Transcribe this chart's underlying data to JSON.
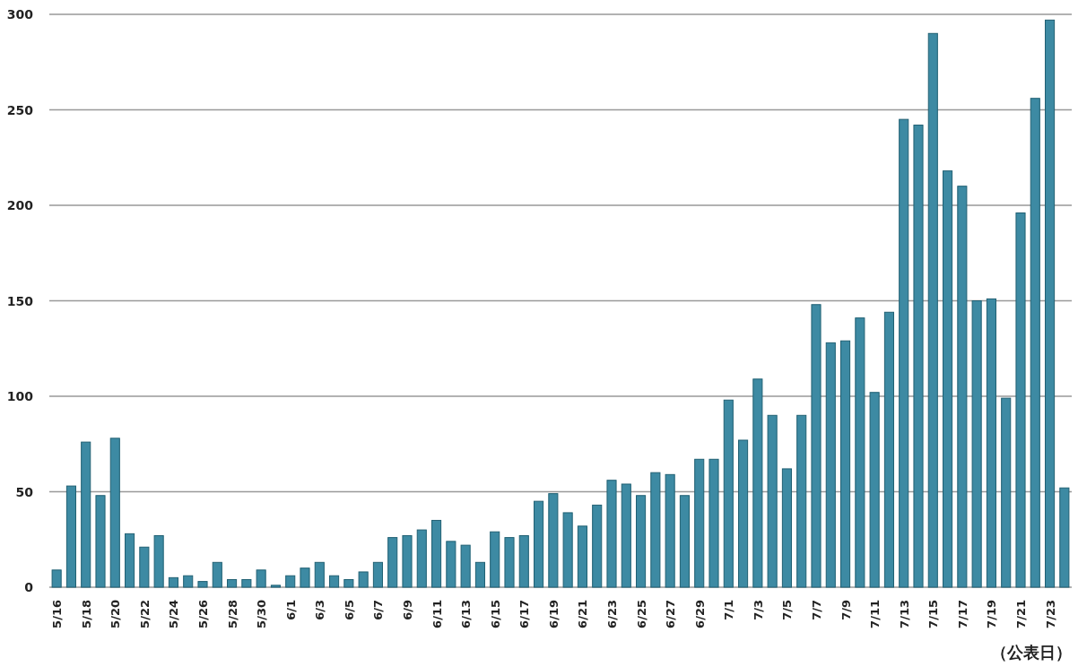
{
  "chart_data": {
    "type": "bar",
    "categories": [
      "5/16",
      null,
      "5/18",
      null,
      "5/20",
      null,
      "5/22",
      null,
      "5/24",
      null,
      "5/26",
      null,
      "5/28",
      null,
      "5/30",
      null,
      "6/1",
      null,
      "6/3",
      null,
      "6/5",
      null,
      "6/7",
      null,
      "6/9",
      null,
      "6/11",
      null,
      "6/13",
      null,
      "6/15",
      null,
      "6/17",
      null,
      "6/19",
      null,
      "6/21",
      null,
      "6/23",
      null,
      "6/25",
      null,
      "6/27",
      null,
      "6/29",
      null,
      "7/1",
      null,
      "7/3",
      null,
      "7/5",
      null,
      "7/7",
      null,
      "7/9",
      null,
      "7/11",
      null,
      "7/13",
      null,
      "7/15",
      null,
      "7/17",
      null,
      "7/19",
      null,
      "7/21",
      null,
      "7/23",
      null
    ],
    "values": [
      9,
      53,
      76,
      48,
      78,
      28,
      21,
      27,
      5,
      6,
      3,
      13,
      4,
      4,
      9,
      1,
      6,
      10,
      13,
      6,
      4,
      8,
      13,
      26,
      27,
      30,
      35,
      24,
      22,
      13,
      29,
      26,
      27,
      45,
      49,
      39,
      32,
      43,
      56,
      54,
      48,
      60,
      59,
      48,
      67,
      67,
      98,
      77,
      109,
      90,
      62,
      90,
      148,
      128,
      129,
      141,
      102,
      144,
      245,
      242,
      290,
      218,
      210,
      150,
      151,
      99,
      196,
      256,
      297,
      52
    ],
    "color": "#3d8aa3",
    "ylim": [
      0,
      300
    ],
    "yticks": [
      0,
      50,
      100,
      150,
      200,
      250,
      300
    ],
    "grid": "y",
    "annotations": [
      "（公表日）"
    ]
  }
}
